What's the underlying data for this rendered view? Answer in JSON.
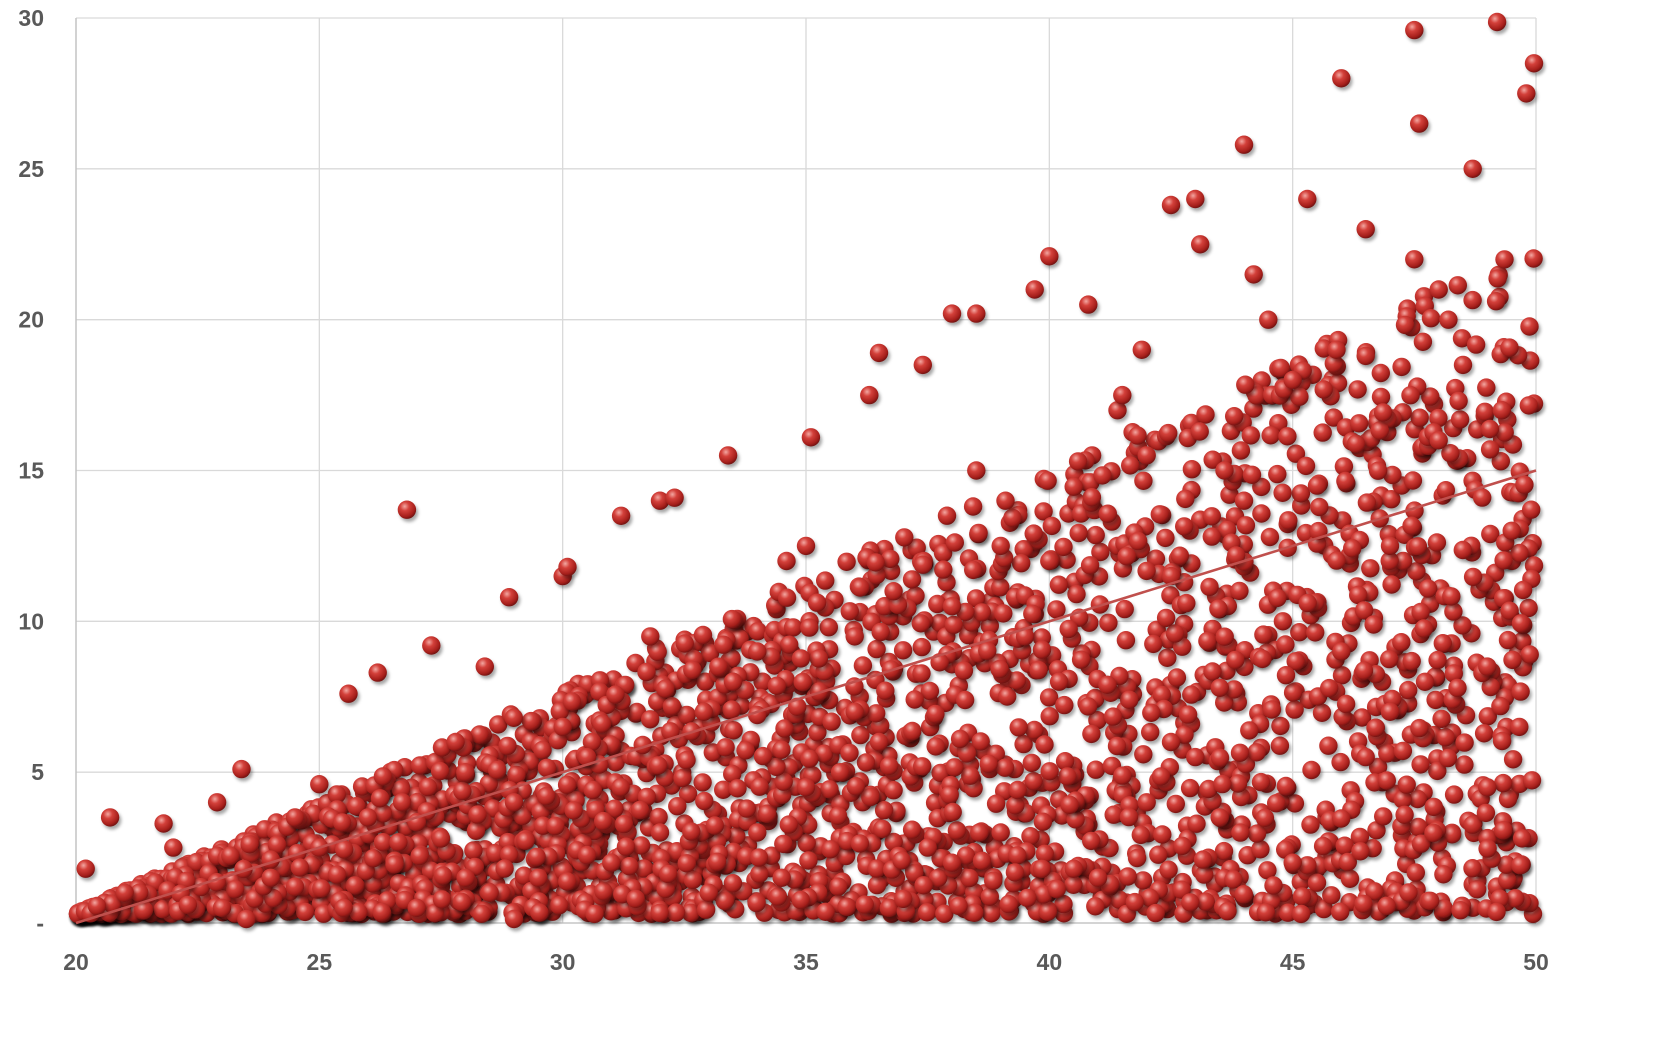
{
  "chart_data": {
    "type": "scatter",
    "title": "",
    "xlabel": "",
    "ylabel": "",
    "xlim": [
      20,
      50
    ],
    "ylim": [
      0,
      30
    ],
    "grid": true,
    "legend": "none",
    "x_ticks": [
      "20",
      "25",
      "30",
      "35",
      "40",
      "45",
      "50"
    ],
    "y_ticks": [
      "-",
      "5",
      "10",
      "15",
      "20",
      "25",
      "30"
    ],
    "marker_color": "#c0312e",
    "marker_highlight_color": "#f3a8a2",
    "marker_shadow_color": "#6e1210",
    "trendline_color": "#c0504d",
    "gridline_color": "#d9d9d9",
    "trendline": {
      "x": [
        20,
        50
      ],
      "y": [
        0,
        15
      ]
    },
    "series": [
      {
        "point_count": 3000,
        "points_description_note": "",
        "x": [
          26.8,
          23.5,
          29.0,
          47.5,
          49.2,
          50.0,
          46.0,
          44.0,
          42.5,
          43.0,
          40.0,
          36.5,
          38.0,
          30.0,
          32.0,
          20.2,
          20.7,
          21.3,
          21.8,
          22.3,
          22.9,
          23.4,
          24.0,
          24.5,
          25.0,
          25.6,
          26.2,
          26.7,
          27.3,
          27.8,
          28.4,
          28.9,
          29.5,
          30.1,
          30.6,
          31.2,
          31.8,
          32.3,
          32.9,
          33.4,
          34.0,
          34.6,
          35.1,
          35.7,
          36.3,
          36.8,
          37.4,
          38.0,
          38.5,
          39.1,
          39.7,
          40.2,
          40.8,
          41.4,
          41.9,
          42.5,
          43.1,
          43.6,
          44.2,
          44.8,
          45.3,
          45.9,
          46.5,
          47.0,
          47.6,
          48.2,
          48.7,
          49.3,
          49.8,
          22.0,
          24.0,
          26.0,
          28.0,
          30.0,
          32.0,
          34.0,
          36.0,
          38.0,
          40.0,
          42.0,
          44.0,
          46.0,
          48.0,
          49.5,
          21.0,
          23.0,
          25.0,
          27.0,
          29.0,
          31.0,
          33.0,
          35.0,
          37.0,
          39.0,
          41.0,
          43.0,
          45.0,
          47.0,
          49.0,
          24.5,
          27.5,
          30.5,
          33.5,
          36.5,
          39.5,
          42.5,
          45.5,
          48.5,
          25.5,
          28.5,
          31.5,
          34.5,
          37.5,
          40.5,
          43.5,
          46.5,
          49.0,
          35.0,
          38.5,
          41.5,
          44.5,
          47.5,
          36.0,
          39.0,
          42.0,
          45.0,
          48.0
        ],
        "y": [
          13.7,
          0.1,
          0.1,
          29.6,
          30.0,
          28.5,
          28.0,
          25.8,
          23.8,
          24.0,
          22.1,
          18.9,
          20.2,
          11.5,
          14.0,
          1.8,
          3.5,
          1.0,
          3.3,
          0.6,
          4.0,
          5.1,
          2.1,
          3.5,
          4.6,
          7.6,
          8.3,
          4.0,
          9.2,
          6.0,
          8.5,
          10.8,
          1.5,
          11.8,
          6.0,
          13.5,
          9.5,
          14.1,
          7.0,
          15.5,
          3.0,
          12.0,
          16.1,
          5.0,
          17.5,
          11.0,
          18.5,
          2.0,
          20.2,
          14.0,
          21.0,
          8.0,
          20.5,
          17.0,
          19.0,
          6.0,
          22.5,
          15.0,
          21.5,
          10.0,
          24.0,
          19.0,
          23.0,
          12.5,
          26.5,
          20.0,
          25.0,
          17.0,
          27.5,
          2.5,
          1.5,
          3.5,
          5.0,
          6.5,
          3.0,
          9.0,
          7.0,
          10.5,
          12.0,
          4.0,
          14.0,
          9.0,
          16.0,
          13.0,
          1.0,
          0.5,
          2.5,
          0.5,
          4.0,
          2.0,
          1.0,
          4.5,
          0.8,
          3.0,
          1.5,
          5.5,
          2.0,
          7.0,
          4.5,
          1.2,
          2.8,
          5.5,
          8.0,
          6.0,
          9.5,
          11.5,
          14.5,
          18.5,
          0.5,
          1.0,
          0.8,
          1.5,
          2.5,
          1.8,
          3.5,
          5.5,
          8.5,
          12.5,
          15.0,
          17.5,
          20.0,
          22.0,
          9.5,
          12.5,
          15.5,
          18.0,
          21.0
        ]
      }
    ]
  }
}
